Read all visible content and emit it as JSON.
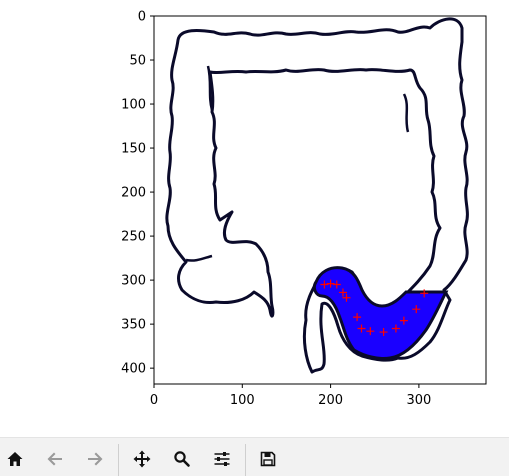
{
  "plot": {
    "xlim": [
      0,
      376
    ],
    "ylim": [
      418,
      0
    ],
    "x_ticks": [
      0,
      100,
      200,
      300
    ],
    "y_ticks": [
      0,
      50,
      100,
      150,
      200,
      250,
      300,
      350,
      400
    ],
    "image": "colon-outline-segmentation",
    "mask_color": "#1a00ff",
    "marker_color": "#ff0000"
  },
  "chart_data": {
    "type": "scatter",
    "title": "",
    "xlabel": "",
    "ylabel": "",
    "xlim": [
      0,
      376
    ],
    "ylim": [
      418,
      0
    ],
    "grid": false,
    "series": [
      {
        "marker": "+",
        "color": "#ff0000",
        "x": [
          193,
          200,
          207,
          214,
          218,
          230,
          235,
          245,
          260,
          274,
          283,
          297,
          306
        ],
        "y": [
          305,
          304,
          305,
          314,
          320,
          342,
          355,
          358,
          359,
          355,
          346,
          333,
          315
        ]
      }
    ]
  },
  "toolbar": {
    "buttons": [
      {
        "name": "home-button",
        "icon": "home-icon",
        "enabled": true
      },
      {
        "name": "back-button",
        "icon": "arrow-left-icon",
        "enabled": false
      },
      {
        "name": "forward-button",
        "icon": "arrow-right-icon",
        "enabled": false
      },
      {
        "name": "pan-button",
        "icon": "move-icon",
        "enabled": true
      },
      {
        "name": "zoom-button",
        "icon": "magnifier-icon",
        "enabled": true
      },
      {
        "name": "configure-subplots-button",
        "icon": "sliders-icon",
        "enabled": true
      },
      {
        "name": "save-button",
        "icon": "floppy-disk-icon",
        "enabled": true
      }
    ]
  }
}
